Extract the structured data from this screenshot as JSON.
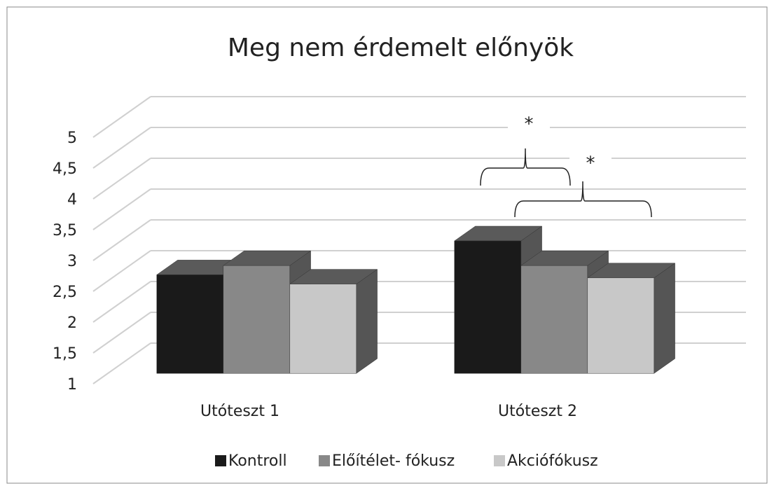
{
  "chart_data": {
    "type": "bar3d",
    "title": "Meg nem érdemelt előnyök",
    "categories": [
      "Utóteszt 1",
      "Utóteszt 2"
    ],
    "series": [
      {
        "name": "Kontroll",
        "color": "#1a1a1a",
        "values": [
          2.6,
          3.15
        ]
      },
      {
        "name": "Előítélet- fókusz",
        "color": "#888888",
        "values": [
          2.75,
          2.75
        ]
      },
      {
        "name": "Akciófókusz",
        "color": "#c8c8c8",
        "values": [
          2.45,
          2.55
        ]
      }
    ],
    "ylim": [
      1,
      5
    ],
    "yticks": [
      1,
      {
        "value": 1.5,
        "label": "1,5"
      },
      2,
      {
        "value": 2.5,
        "label": "2,5"
      },
      3,
      {
        "value": 3.5,
        "label": "3,5"
      },
      4,
      {
        "value": 4.5,
        "label": "4,5"
      },
      5
    ],
    "grid": true,
    "legend": "bottom",
    "annotations": [
      {
        "text": "*"
      },
      {
        "text": "*"
      }
    ]
  }
}
